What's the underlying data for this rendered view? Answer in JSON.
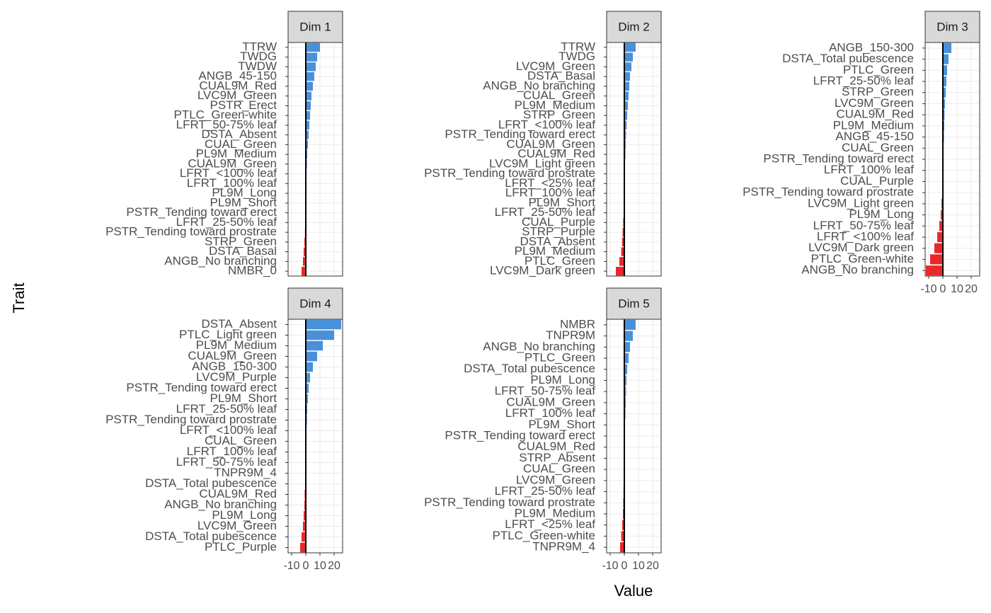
{
  "axis_titles": {
    "x": "Value",
    "y": "Trait"
  },
  "chart_data": [
    {
      "type": "bar",
      "title": "Dim 1",
      "categories": [
        "TTRW",
        "TWDG",
        "TWDW",
        "ANGB_45-150",
        "CUAL9M_Red",
        "LVC9M_Green",
        "PSTR_Erect",
        "PTLC_Green-white",
        "LFRT_50-75% leaf",
        "DSTA_Absent",
        "CUAL_Green",
        "PL9M_Medium",
        "CUAL9M_Green",
        "LFRT_<100% leaf",
        "LFRT_100% leaf",
        "PL9M_Long",
        "PL9M_Short",
        "PSTR_Tending toward erect",
        "LFRT_25-50% leaf",
        "PSTR_Tending toward prostrate",
        "STRP_Green",
        "DSTA_Basal",
        "ANGB_No branching",
        "NMBR_0"
      ],
      "values": [
        10,
        8,
        7,
        6,
        5,
        4,
        3.5,
        3,
        2.5,
        2,
        1.5,
        1,
        0.8,
        0.5,
        0.3,
        0.2,
        0.1,
        -0.2,
        -0.4,
        -0.6,
        -1,
        -1.5,
        -2,
        -3
      ],
      "xlim": [
        -12.5,
        26
      ],
      "xticks": [
        -10,
        0,
        10,
        20
      ],
      "color_positive": "#4a90d9",
      "color_negative": "#e8282a"
    },
    {
      "type": "bar",
      "title": "Dim 2",
      "categories": [
        "TTRW",
        "TWDG",
        "LVC9M_Green",
        "DSTA_Basal",
        "ANGB_No branching",
        "CUAL_Green",
        "PL9M_Medium",
        "STRP_Green",
        "LFRT_<100% leaf",
        "PSTR_Tending toward erect",
        "CUAL9M_Green",
        "CUAL9M_Red",
        "LVC9M_Light green",
        "PSTR_Tending toward prostrate",
        "LFRT_<25% leaf",
        "LFRT_100% leaf",
        "PL9M_Short",
        "LFRT_25-50% leaf",
        "CUAL_Purple",
        "STRP_Purple",
        "DSTA_Absent",
        "PL9M_Medium",
        "PTLC_Green",
        "LVC9M_Dark green"
      ],
      "values": [
        8,
        6,
        5,
        4,
        3.5,
        3,
        2.5,
        2,
        1.6,
        1.2,
        1,
        0.8,
        0.5,
        0.3,
        0.1,
        -0.1,
        -0.3,
        -0.5,
        -0.8,
        -1.2,
        -1.6,
        -2.2,
        -3.5,
        -6
      ],
      "xlim": [
        -12.5,
        26
      ],
      "xticks": [
        -10,
        0,
        10,
        20
      ],
      "color_positive": "#4a90d9",
      "color_negative": "#e8282a"
    },
    {
      "type": "bar",
      "title": "Dim 3",
      "categories": [
        "ANGB_150-300",
        "DSTA_Total pubescence",
        "PTLC_Green",
        "LFRT_25-50% leaf",
        "STRP_Green",
        "LVC9M_Green",
        "CUAL9M_Red",
        "PL9M_Medium",
        "ANGB_45-150",
        "CUAL_Green",
        "PSTR_Tending toward erect",
        "LFRT_100% leaf",
        "CUAL_Purple",
        "PSTR_Tending toward prostrate",
        "LVC9M_Light green",
        "PL9M_Long",
        "LFRT_50-75% leaf",
        "LFRT_<100% leaf",
        "LVC9M_Dark green",
        "PTLC_Green-white",
        "ANGB_No branching"
      ],
      "values": [
        6,
        4,
        3,
        2.5,
        2,
        1.5,
        1.2,
        1,
        0.8,
        0.5,
        0.3,
        0.1,
        -0.2,
        -0.5,
        -1,
        -1.5,
        -2.5,
        -4,
        -6,
        -9,
        -12
      ],
      "xlim": [
        -12.5,
        26
      ],
      "xticks": [
        -10,
        0,
        10,
        20
      ],
      "color_positive": "#4a90d9",
      "color_negative": "#e8282a"
    },
    {
      "type": "bar",
      "title": "Dim 4",
      "categories": [
        "DSTA_Absent",
        "PTLC_Light green",
        "PL9M_Medium",
        "CUAL9M_Green",
        "ANGB_150-300",
        "LVC9M_Purple",
        "PSTR_Tending toward erect",
        "PL9M_Short",
        "LFRT_25-50% leaf",
        "PSTR_Tending toward prostrate",
        "LFRT_<100% leaf",
        "CUAL_Green",
        "LFRT_100% leaf",
        "LFRT_50-75% leaf",
        "TNPR9M_4",
        "DSTA_Total pubescence",
        "CUAL9M_Red",
        "ANGB_No branching",
        "PL9M_Long",
        "LVC9M_Green",
        "DSTA_Total pubescence",
        "PTLC_Purple"
      ],
      "values": [
        25,
        20,
        12,
        8,
        5,
        3,
        2,
        1.5,
        1,
        0.8,
        0.5,
        0.3,
        0.1,
        -0.1,
        -0.3,
        -0.5,
        -0.8,
        -1,
        -1.5,
        -2,
        -3,
        -4
      ],
      "xlim": [
        -12.5,
        26
      ],
      "xticks": [
        -10,
        0,
        10,
        20
      ],
      "color_positive": "#4a90d9",
      "color_negative": "#e8282a"
    },
    {
      "type": "bar",
      "title": "Dim 5",
      "categories": [
        "NMBR",
        "TNPR9M",
        "ANGB_No branching",
        "PTLC_Green",
        "DSTA_Total pubescence",
        "PL9M_Long",
        "LFRT_50-75% leaf",
        "CUAL9M_Green",
        "LFRT_100% leaf",
        "PL9M_Short",
        "PSTR_Tending toward erect",
        "CUAL9M_Red",
        "STRP_Absent",
        "CUAL_Green",
        "LVC9M_Green",
        "LFRT_25-50% leaf",
        "PSTR_Tending toward prostrate",
        "PL9M_Medium",
        "LFRT_<25% leaf",
        "PTLC_Green-white",
        "TNPR9M_4"
      ],
      "values": [
        8,
        6,
        4,
        3,
        2,
        1.5,
        1.2,
        1,
        0.8,
        0.5,
        0.3,
        0.1,
        -0.1,
        -0.2,
        -0.4,
        -0.6,
        -0.8,
        -1,
        -1.5,
        -2.2,
        -3
      ],
      "xlim": [
        -12.5,
        26
      ],
      "xticks": [
        -10,
        0,
        10,
        20
      ],
      "color_positive": "#4a90d9",
      "color_negative": "#e8282a"
    }
  ]
}
